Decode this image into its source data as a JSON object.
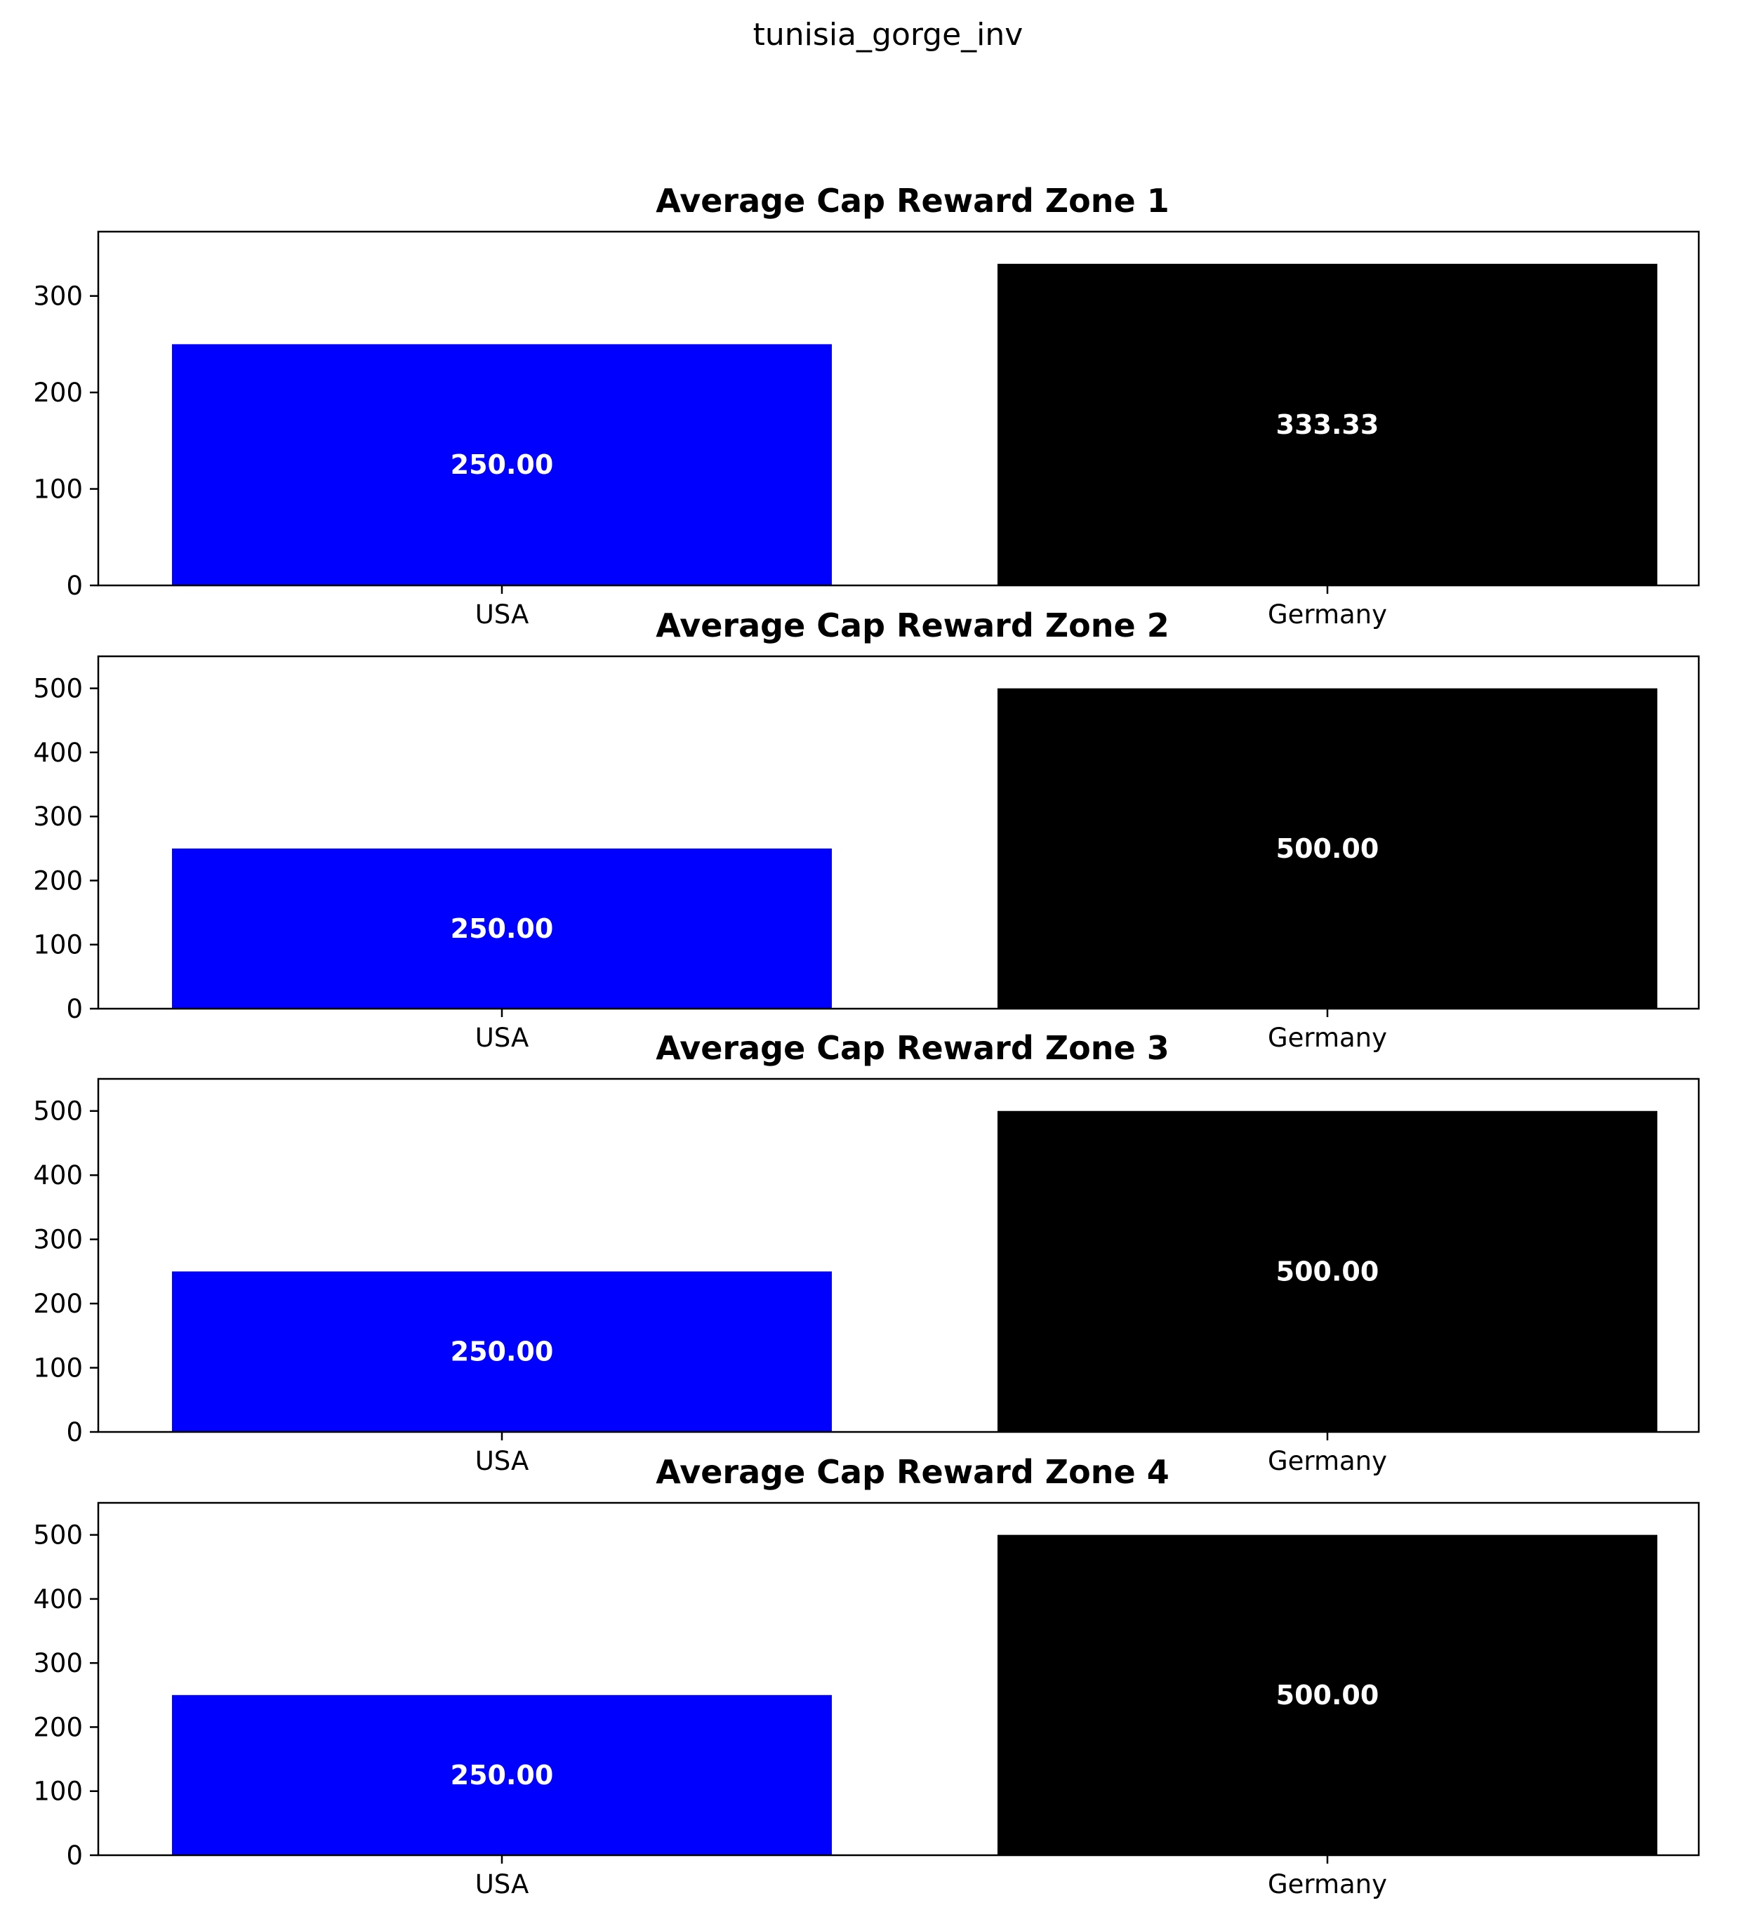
{
  "figure_title": "tunisia_gorge_inv",
  "chart_data": [
    {
      "type": "bar",
      "title": "Average Cap Reward Zone 1",
      "categories": [
        "USA",
        "Germany"
      ],
      "values": [
        250.0,
        333.33
      ],
      "value_labels": [
        "250.00",
        "333.33"
      ],
      "colors": [
        "#0000ff",
        "#000000"
      ],
      "label_color": "#ffffff",
      "yticks": [
        0,
        100,
        200,
        300
      ],
      "ylim": [
        0,
        366.67
      ],
      "xlabel": "",
      "ylabel": "",
      "grid": false,
      "legend": "none"
    },
    {
      "type": "bar",
      "title": "Average Cap Reward Zone 2",
      "categories": [
        "USA",
        "Germany"
      ],
      "values": [
        250.0,
        500.0
      ],
      "value_labels": [
        "250.00",
        "500.00"
      ],
      "colors": [
        "#0000ff",
        "#000000"
      ],
      "label_color": "#ffffff",
      "yticks": [
        0,
        100,
        200,
        300,
        400,
        500
      ],
      "ylim": [
        0,
        550
      ],
      "xlabel": "",
      "ylabel": "",
      "grid": false,
      "legend": "none"
    },
    {
      "type": "bar",
      "title": "Average Cap Reward Zone 3",
      "categories": [
        "USA",
        "Germany"
      ],
      "values": [
        250.0,
        500.0
      ],
      "value_labels": [
        "250.00",
        "500.00"
      ],
      "colors": [
        "#0000ff",
        "#000000"
      ],
      "label_color": "#ffffff",
      "yticks": [
        0,
        100,
        200,
        300,
        400,
        500
      ],
      "ylim": [
        0,
        550
      ],
      "xlabel": "",
      "ylabel": "",
      "grid": false,
      "legend": "none"
    },
    {
      "type": "bar",
      "title": "Average Cap Reward Zone 4",
      "categories": [
        "USA",
        "Germany"
      ],
      "values": [
        250.0,
        500.0
      ],
      "value_labels": [
        "250.00",
        "500.00"
      ],
      "colors": [
        "#0000ff",
        "#000000"
      ],
      "label_color": "#ffffff",
      "yticks": [
        0,
        100,
        200,
        300,
        400,
        500
      ],
      "ylim": [
        0,
        550
      ],
      "xlabel": "",
      "ylabel": "",
      "grid": false,
      "legend": "none"
    }
  ]
}
